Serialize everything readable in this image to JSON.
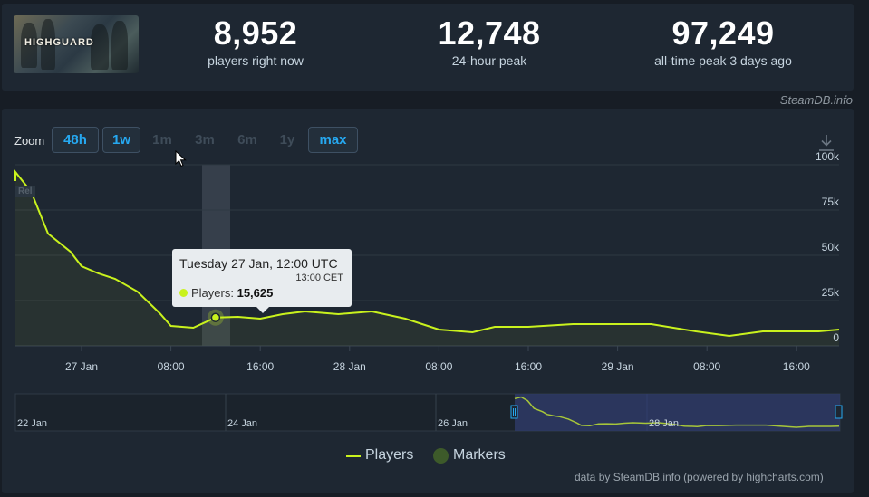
{
  "header": {
    "game_image_alt": "HIGHGUARD",
    "stats": [
      {
        "value": "8,952",
        "label": "players right now"
      },
      {
        "value": "12,748",
        "label": "24-hour peak"
      },
      {
        "value": "97,249",
        "label": "all-time peak 3 days ago"
      }
    ],
    "credit": "SteamDB.info"
  },
  "zoom": {
    "label": "Zoom",
    "buttons": [
      {
        "label": "48h",
        "state": "active"
      },
      {
        "label": "1w",
        "state": "active"
      },
      {
        "label": "1m",
        "state": "disabled"
      },
      {
        "label": "3m",
        "state": "disabled"
      },
      {
        "label": "6m",
        "state": "disabled"
      },
      {
        "label": "1y",
        "state": "disabled"
      },
      {
        "label": "max",
        "state": "active"
      }
    ]
  },
  "rel_badge": "Rel",
  "tooltip": {
    "title": "Tuesday 27 Jan, 12:00 UTC",
    "subtitle": "13:00 CET",
    "series_label": "Players:",
    "series_value": "15,625"
  },
  "legend": {
    "players": "Players",
    "markers": "Markers"
  },
  "footer": "data by SteamDB.info (powered by highcharts.com)",
  "colors": {
    "series": "#c9f21d",
    "background": "#1e2732",
    "accent": "#26a8f0",
    "navigator_selection": "#2e3a66"
  },
  "chart_data": {
    "type": "line",
    "series": [
      {
        "name": "Players",
        "points": [
          [
            "26 Jan 16:30",
            91000
          ],
          [
            "26 Jan 18:00",
            96000
          ],
          [
            "26 Jan 19:30",
            85000
          ],
          [
            "26 Jan 21:00",
            62000
          ],
          [
            "26 Jan 23:00",
            52000
          ],
          [
            "27 Jan 00:00",
            44000
          ],
          [
            "27 Jan 01:30",
            40000
          ],
          [
            "27 Jan 03:00",
            37000
          ],
          [
            "27 Jan 05:00",
            30000
          ],
          [
            "27 Jan 07:00",
            18000
          ],
          [
            "27 Jan 08:00",
            11000
          ],
          [
            "27 Jan 10:00",
            10000
          ],
          [
            "27 Jan 12:00",
            15625
          ],
          [
            "27 Jan 14:00",
            16000
          ],
          [
            "27 Jan 16:00",
            15000
          ],
          [
            "27 Jan 18:00",
            17500
          ],
          [
            "27 Jan 20:00",
            19000
          ],
          [
            "27 Jan 23:00",
            17500
          ],
          [
            "28 Jan 02:00",
            19000
          ],
          [
            "28 Jan 05:00",
            15000
          ],
          [
            "28 Jan 08:00",
            9000
          ],
          [
            "28 Jan 11:00",
            7500
          ],
          [
            "28 Jan 13:00",
            10500
          ],
          [
            "28 Jan 16:00",
            10500
          ],
          [
            "28 Jan 20:00",
            12000
          ],
          [
            "29 Jan 00:00",
            12000
          ],
          [
            "29 Jan 03:00",
            12000
          ],
          [
            "29 Jan 07:00",
            8000
          ],
          [
            "29 Jan 10:00",
            5500
          ],
          [
            "29 Jan 13:00",
            8000
          ],
          [
            "29 Jan 18:00",
            8000
          ],
          [
            "29 Jan 20:00",
            9000
          ]
        ]
      }
    ],
    "x_ticks": [
      "27 Jan",
      "08:00",
      "16:00",
      "28 Jan",
      "08:00",
      "16:00",
      "29 Jan",
      "08:00",
      "16:00"
    ],
    "y_ticks": [
      "0",
      "25k",
      "50k",
      "75k",
      "100k"
    ],
    "ylim": [
      0,
      100000
    ],
    "highlighted_point": {
      "x": "27 Jan 12:00",
      "y": 15625
    },
    "navigator_ticks": [
      "22 Jan",
      "24 Jan",
      "26 Jan",
      "28 Jan"
    ],
    "grid": true,
    "legend": "bottom-center"
  }
}
